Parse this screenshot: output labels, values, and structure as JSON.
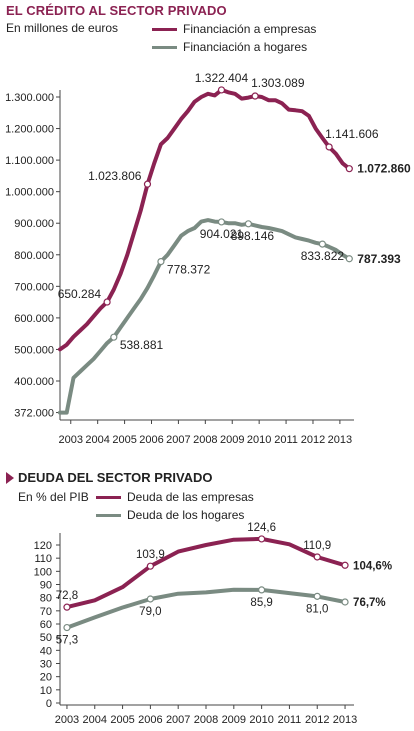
{
  "colors": {
    "empresas": "#8b2252",
    "hogares": "#7a8b82",
    "title": "#8b2252"
  },
  "chart_data": [
    {
      "type": "line",
      "title": "EL CRÉDITO AL SECTOR PRIVADO",
      "subtitle": "En millones de euros",
      "ylim": [
        372000,
        1350000
      ],
      "x_range": [
        2003,
        2013.85
      ],
      "xticks": [
        "2003",
        "2004",
        "2005",
        "2006",
        "2007",
        "2008",
        "2009",
        "2010",
        "2011",
        "2012",
        "2013"
      ],
      "yticks": [
        {
          "value": 1300000,
          "label": "1.300.000"
        },
        {
          "value": 1200000,
          "label": "1.200.000"
        },
        {
          "value": 1100000,
          "label": "1.100.000"
        },
        {
          "value": 1000000,
          "label": "1.000.000"
        },
        {
          "value": 900000,
          "label": "900.000"
        },
        {
          "value": 800000,
          "label": "800.000"
        },
        {
          "value": 700000,
          "label": "700.000"
        },
        {
          "value": 600000,
          "label": "600.000"
        },
        {
          "value": 500000,
          "label": "500.000"
        },
        {
          "value": 400000,
          "label": "400.000"
        },
        {
          "value": 372000,
          "label": "372.000"
        }
      ],
      "series": [
        {
          "name": "Financiación a empresas",
          "x": [
            2003.0,
            2003.25,
            2003.5,
            2003.75,
            2004.0,
            2004.25,
            2004.5,
            2004.75,
            2005.0,
            2005.25,
            2005.5,
            2005.75,
            2006.0,
            2006.25,
            2006.5,
            2006.75,
            2007.0,
            2007.25,
            2007.5,
            2007.75,
            2008.0,
            2008.25,
            2008.5,
            2008.75,
            2009.0,
            2009.25,
            2009.5,
            2009.75,
            2010.0,
            2010.25,
            2010.5,
            2010.75,
            2011.0,
            2011.25,
            2011.5,
            2011.75,
            2012.0,
            2012.25,
            2012.5,
            2012.75,
            2013.0,
            2013.25,
            2013.5,
            2013.75
          ],
          "y": [
            500000,
            515000,
            540000,
            560000,
            580000,
            605000,
            630000,
            650284,
            690000,
            740000,
            800000,
            870000,
            940000,
            1023806,
            1090000,
            1150000,
            1170000,
            1200000,
            1230000,
            1255000,
            1285000,
            1300000,
            1310000,
            1305000,
            1322404,
            1315000,
            1310000,
            1295000,
            1298000,
            1303089,
            1300000,
            1290000,
            1290000,
            1280000,
            1260000,
            1258000,
            1255000,
            1240000,
            1200000,
            1170000,
            1141606,
            1120000,
            1090000,
            1072860
          ],
          "labels": [
            {
              "x": 2004.75,
              "y": 650284,
              "text": "650.284",
              "pos": "left"
            },
            {
              "x": 2006.25,
              "y": 1023806,
              "text": "1.023.806",
              "pos": "left"
            },
            {
              "x": 2009.0,
              "y": 1322404,
              "text": "1.322.404",
              "pos": "top"
            },
            {
              "x": 2010.25,
              "y": 1303089,
              "text": "1.303.089",
              "pos": "top-right"
            },
            {
              "x": 2013.0,
              "y": 1141606,
              "text": "1.141.606",
              "pos": "top-right"
            },
            {
              "x": 2013.75,
              "y": 1072860,
              "text": "1.072.860",
              "pos": "right",
              "bold": true
            }
          ]
        },
        {
          "name": "Financiación a hogares",
          "x": [
            2003.0,
            2003.25,
            2003.5,
            2003.75,
            2004.0,
            2004.25,
            2004.5,
            2004.75,
            2005.0,
            2005.25,
            2005.5,
            2005.75,
            2006.0,
            2006.25,
            2006.5,
            2006.75,
            2007.0,
            2007.25,
            2007.5,
            2007.75,
            2008.0,
            2008.25,
            2008.5,
            2008.75,
            2009.0,
            2009.25,
            2009.5,
            2009.75,
            2010.0,
            2010.25,
            2010.5,
            2010.75,
            2011.0,
            2011.25,
            2011.5,
            2011.75,
            2012.0,
            2012.25,
            2012.5,
            2012.75,
            2013.0,
            2013.25,
            2013.5,
            2013.75
          ],
          "y": [
            380000,
            395000,
            410000,
            430000,
            450000,
            470000,
            495000,
            520000,
            538881,
            570000,
            600000,
            630000,
            660000,
            695000,
            735000,
            778372,
            800000,
            830000,
            860000,
            875000,
            885000,
            905000,
            910000,
            905000,
            904021,
            900000,
            900000,
            895000,
            898146,
            893000,
            888000,
            885000,
            880000,
            875000,
            865000,
            855000,
            850000,
            845000,
            838000,
            833822,
            825000,
            815000,
            800000,
            787393
          ],
          "labels": [
            {
              "x": 2005.0,
              "y": 538881,
              "text": "538.881",
              "pos": "right-low"
            },
            {
              "x": 2006.75,
              "y": 778372,
              "text": "778.372",
              "pos": "right-low"
            },
            {
              "x": 2009.0,
              "y": 904021,
              "text": "904.021",
              "pos": "bottom"
            },
            {
              "x": 2010.0,
              "y": 898146,
              "text": "898.146",
              "pos": "bottom-right"
            },
            {
              "x": 2012.75,
              "y": 833822,
              "text": "833.822",
              "pos": "bottom"
            },
            {
              "x": 2013.75,
              "y": 787393,
              "text": "787.393",
              "pos": "right",
              "bold": true
            }
          ]
        }
      ]
    },
    {
      "type": "line",
      "title": "DEUDA DEL SECTOR PRIVADO",
      "subtitle": "En % del PIB",
      "ylim": [
        0,
        125
      ],
      "x_range": [
        2002.75,
        2013.25
      ],
      "xticks": [
        "2003",
        "2004",
        "2005",
        "2006",
        "2007",
        "2008",
        "2009",
        "2010",
        "2011",
        "2012",
        "2013"
      ],
      "yticks": [
        {
          "value": 120,
          "label": "120"
        },
        {
          "value": 110,
          "label": "110"
        },
        {
          "value": 100,
          "label": "100"
        },
        {
          "value": 90,
          "label": "90"
        },
        {
          "value": 80,
          "label": "80"
        },
        {
          "value": 70,
          "label": "70"
        },
        {
          "value": 60,
          "label": "60"
        },
        {
          "value": 50,
          "label": "50"
        },
        {
          "value": 40,
          "label": "40"
        },
        {
          "value": 30,
          "label": "30"
        },
        {
          "value": 20,
          "label": "20"
        },
        {
          "value": 10,
          "label": "10"
        },
        {
          "value": 0,
          "label": "0"
        }
      ],
      "series": [
        {
          "name": "Deuda de las empresas",
          "x": [
            2003,
            2004,
            2005,
            2006,
            2007,
            2008,
            2009,
            2010,
            2011,
            2012,
            2013
          ],
          "y": [
            72.8,
            78.0,
            88.0,
            103.9,
            115.0,
            120.0,
            124.0,
            124.6,
            120.5,
            110.9,
            104.6
          ],
          "labels": [
            {
              "x": 2003,
              "y": 72.8,
              "text": "72,8",
              "pos": "top"
            },
            {
              "x": 2006,
              "y": 103.9,
              "text": "103,9",
              "pos": "top"
            },
            {
              "x": 2010,
              "y": 124.6,
              "text": "124,6",
              "pos": "top"
            },
            {
              "x": 2012,
              "y": 110.9,
              "text": "110,9",
              "pos": "top"
            },
            {
              "x": 2013,
              "y": 104.6,
              "text": "104,6%",
              "pos": "right",
              "bold": true
            }
          ]
        },
        {
          "name": "Deuda de los hogares",
          "x": [
            2003,
            2004,
            2005,
            2006,
            2007,
            2008,
            2009,
            2010,
            2011,
            2012,
            2013
          ],
          "y": [
            57.3,
            65.0,
            72.5,
            79.0,
            83.0,
            84.0,
            86.0,
            85.9,
            83.5,
            81.0,
            76.7
          ],
          "labels": [
            {
              "x": 2003,
              "y": 57.3,
              "text": "57,3",
              "pos": "bottom"
            },
            {
              "x": 2006,
              "y": 79.0,
              "text": "79,0",
              "pos": "bottom"
            },
            {
              "x": 2010,
              "y": 85.9,
              "text": "85,9",
              "pos": "bottom"
            },
            {
              "x": 2012,
              "y": 81.0,
              "text": "81,0",
              "pos": "bottom"
            },
            {
              "x": 2013,
              "y": 76.7,
              "text": "76,7%",
              "pos": "right",
              "bold": true
            }
          ]
        }
      ]
    }
  ]
}
